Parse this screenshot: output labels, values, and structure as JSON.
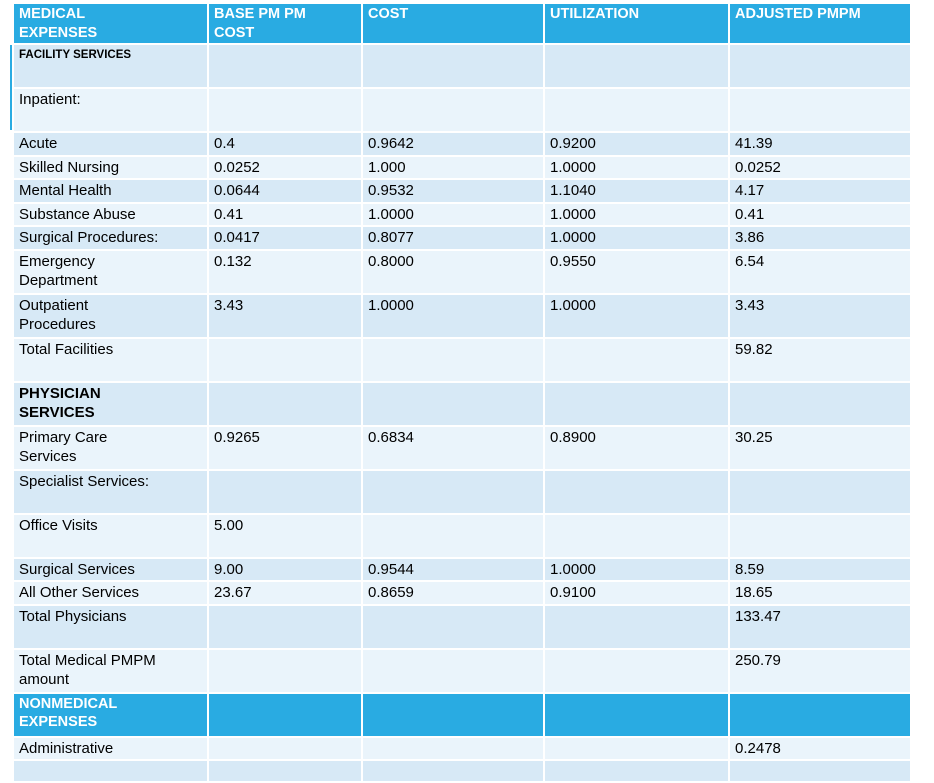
{
  "accent": {
    "header_bg": "#29ABE2",
    "row_medium": "#D7E9F6",
    "row_light": "#EAF4FB"
  },
  "table": {
    "columns": [
      "MEDICAL\nEXPENSES",
      "BASE PM PM\nCOST",
      "COST",
      "UTILIZATION",
      "ADJUSTED PMPM"
    ],
    "rows": [
      {
        "label": "FACILITY SERVICES",
        "values": [
          "",
          "",
          "",
          ""
        ],
        "type": "subheader-small",
        "tall": true
      },
      {
        "label": "Inpatient:",
        "values": [
          "",
          "",
          "",
          ""
        ],
        "type": "data",
        "tall": true
      },
      {
        "label": "Acute",
        "values": [
          "0.4",
          "0.9642",
          "0.9200",
          "41.39"
        ],
        "type": "data"
      },
      {
        "label": "Skilled Nursing",
        "values": [
          "0.0252",
          "1.000",
          "1.0000",
          "0.0252"
        ],
        "type": "data"
      },
      {
        "label": "Mental Health",
        "values": [
          "0.0644",
          "0.9532",
          "1.1040",
          "4.17"
        ],
        "type": "data"
      },
      {
        "label": "Substance Abuse",
        "values": [
          "0.41",
          "1.0000",
          "1.0000",
          "0.41"
        ],
        "type": "data"
      },
      {
        "label": "Surgical Procedures:",
        "values": [
          "0.0417",
          "0.8077",
          "1.0000",
          "3.86"
        ],
        "type": "data"
      },
      {
        "label": "Emergency\nDepartment",
        "values": [
          "0.132",
          "0.8000",
          "0.9550",
          "6.54"
        ],
        "type": "data",
        "tall": true
      },
      {
        "label": "Outpatient\nProcedures",
        "values": [
          "3.43",
          "1.0000",
          "1.0000",
          "3.43"
        ],
        "type": "data",
        "tall": true
      },
      {
        "label": "Total Facilities",
        "values": [
          "",
          "",
          "",
          "59.82"
        ],
        "type": "data",
        "tall": true
      },
      {
        "label": "PHYSICIAN\nSERVICES",
        "values": [
          "",
          "",
          "",
          ""
        ],
        "type": "section-bold",
        "tall": true
      },
      {
        "label": "Primary Care\nServices",
        "values": [
          "0.9265",
          "0.6834",
          "0.8900",
          "30.25"
        ],
        "type": "data",
        "tall": true
      },
      {
        "label": "Specialist Services:",
        "values": [
          "",
          "",
          "",
          ""
        ],
        "type": "data",
        "tall": true
      },
      {
        "label": "Office Visits",
        "values": [
          "5.00",
          "",
          "",
          ""
        ],
        "type": "data",
        "tall": true
      },
      {
        "label": "Surgical Services",
        "values": [
          "9.00",
          "0.9544",
          "1.0000",
          "8.59"
        ],
        "type": "data"
      },
      {
        "label": "All Other Services",
        "values": [
          "23.67",
          "0.8659",
          "0.9100",
          "18.65"
        ],
        "type": "data"
      },
      {
        "label": "Total Physicians",
        "values": [
          "",
          "",
          "",
          "133.47"
        ],
        "type": "data",
        "tall": true
      },
      {
        "label": "Total Medical PMPM\namount",
        "values": [
          "",
          "",
          "",
          "250.79"
        ],
        "type": "data",
        "tall": true
      },
      {
        "label": "NONMEDICAL\nEXPENSES",
        "values": [
          "",
          "",
          "",
          ""
        ],
        "type": "section-cyan",
        "tall": true
      },
      {
        "label": "Administrative",
        "values": [
          "",
          "",
          "",
          "0.2478"
        ],
        "type": "data"
      },
      {
        "label": "",
        "values": [
          "",
          "",
          "",
          ""
        ],
        "type": "data"
      }
    ]
  }
}
